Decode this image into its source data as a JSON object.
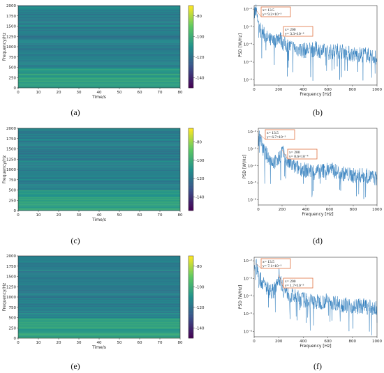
{
  "panel_labels": [
    "(a)",
    "(b)",
    "(c)",
    "(d)",
    "(e)",
    "(f)"
  ],
  "chart_data": [
    {
      "panel": "(a)",
      "type": "heatmap",
      "xlabel": "Time/s",
      "ylabel": "Frequency/Hz",
      "xlim": [
        0,
        80
      ],
      "ylim": [
        0,
        2000
      ],
      "xticks": [
        "0",
        "10",
        "20",
        "30",
        "40",
        "50",
        "60",
        "70",
        "80"
      ],
      "yticks": [
        "0",
        "250",
        "500",
        "750",
        "1000",
        "1250",
        "1500",
        "1750",
        "2000"
      ],
      "colorbar_ticks": [
        "-80",
        "-100",
        "-120",
        "-140"
      ],
      "colorbar_range": [
        -150,
        -70
      ],
      "colormap": [
        "#440154",
        "#3b528b",
        "#21918c",
        "#5ec962",
        "#fde725"
      ]
    },
    {
      "panel": "(b)",
      "type": "line",
      "xlabel": "Frequency [Hz]",
      "ylabel": "PSD [W/Hz]",
      "xlim": [
        0,
        1000
      ],
      "yscale": "log",
      "xticks": [
        "0",
        "200",
        "400",
        "600",
        "800",
        "1000"
      ],
      "yticks": [
        "10⁻²",
        "10⁻³",
        "10⁻⁴",
        "10⁻⁵",
        "10⁻⁶"
      ],
      "series": [
        {
          "x": [
            0,
            13.5,
            40,
            80,
            120,
            160,
            200,
            240,
            300,
            400,
            500,
            600,
            700,
            800,
            900,
            1000
          ],
          "y": [
            0.005,
            0.0092,
            0.001,
            0.0004,
            0.0002,
            0.00015,
            0.00033,
            0.00012,
            8e-05,
            5e-05,
            6e-05,
            4e-05,
            5e-05,
            3e-05,
            3e-05,
            2e-05
          ]
        }
      ],
      "annotations": [
        {
          "x": "x= 13.5",
          "y": "y= 9.2×10⁻³"
        },
        {
          "x": "x= 200",
          "y": "y= 3.3×10⁻⁴"
        }
      ],
      "color": "#2f7dbd"
    },
    {
      "panel": "(c)",
      "type": "heatmap",
      "xlabel": "Time/s",
      "ylabel": "Frequency/Hz",
      "xlim": [
        0,
        80
      ],
      "ylim": [
        0,
        2000
      ],
      "xticks": [
        "0",
        "10",
        "20",
        "30",
        "40",
        "50",
        "60",
        "70",
        "80"
      ],
      "yticks": [
        "0",
        "250",
        "500",
        "750",
        "1000",
        "1250",
        "1500",
        "1750",
        "2000"
      ],
      "colorbar_ticks": [
        "-80",
        "-100",
        "-120",
        "-140"
      ],
      "colorbar_range": [
        -155,
        -65
      ],
      "colormap": [
        "#440154",
        "#3b528b",
        "#21918c",
        "#5ec962",
        "#fde725"
      ]
    },
    {
      "panel": "(d)",
      "type": "line",
      "xlabel": "Frequency [Hz]",
      "ylabel": "PSD [W/Hz]",
      "xlim": [
        0,
        1000
      ],
      "yscale": "log",
      "xticks": [
        "0",
        "200",
        "400",
        "600",
        "800",
        "1000"
      ],
      "yticks": [
        "10⁻²",
        "10⁻³",
        "10⁻⁴",
        "10⁻⁵",
        "10⁻⁶"
      ],
      "series": [
        {
          "x": [
            0,
            13.5,
            40,
            80,
            120,
            160,
            200,
            240,
            300,
            400,
            500,
            600,
            700,
            800,
            900,
            1000
          ],
          "y": [
            0.004,
            0.0067,
            0.001,
            0.0004,
            0.0002,
            0.00018,
            0.00086,
            0.0002,
            0.0001,
            6e-05,
            5e-05,
            7e-05,
            4e-05,
            3e-05,
            3e-05,
            2e-05
          ]
        }
      ],
      "annotations": [
        {
          "x": "x= 13.5",
          "y": "y= 6.7×10⁻³"
        },
        {
          "x": "x= 200",
          "y": "y= 8.6×10⁻⁴"
        }
      ],
      "color": "#2f7dbd"
    },
    {
      "panel": "(e)",
      "type": "heatmap",
      "xlabel": "Time/s",
      "ylabel": "Frequency/Hz",
      "xlim": [
        0,
        80
      ],
      "ylim": [
        0,
        2000
      ],
      "xticks": [
        "0",
        "10",
        "20",
        "30",
        "40",
        "50",
        "60",
        "70",
        "80"
      ],
      "yticks": [
        "0",
        "250",
        "500",
        "750",
        "1000",
        "1250",
        "1500",
        "1750",
        "2000"
      ],
      "colorbar_ticks": [
        "-80",
        "-100",
        "-120",
        "-140"
      ],
      "colorbar_range": [
        -150,
        -70
      ],
      "colormap": [
        "#440154",
        "#3b528b",
        "#21918c",
        "#5ec962",
        "#fde725"
      ]
    },
    {
      "panel": "(f)",
      "type": "line",
      "xlabel": "Frequency [Hz]",
      "ylabel": "PSD [W/Hz]",
      "xlim": [
        0,
        1000
      ],
      "yscale": "log",
      "xticks": [
        "0",
        "200",
        "400",
        "600",
        "800",
        "1000"
      ],
      "yticks": [
        "10⁻²",
        "10⁻³",
        "10⁻⁴",
        "10⁻⁵",
        "10⁻⁶"
      ],
      "series": [
        {
          "x": [
            0,
            13.5,
            40,
            80,
            120,
            160,
            200,
            240,
            300,
            400,
            500,
            600,
            700,
            800,
            900,
            1000
          ],
          "y": [
            0.004,
            0.0071,
            0.0012,
            0.0005,
            0.00025,
            0.0002,
            0.0017,
            0.00025,
            0.00012,
            7e-05,
            5e-05,
            6e-05,
            4e-05,
            3e-05,
            3e-05,
            2e-05
          ]
        }
      ],
      "annotations": [
        {
          "x": "x= 13.5",
          "y": "y= 7.1×10⁻³"
        },
        {
          "x": "x= 200",
          "y": "y= 1.7×10⁻³"
        }
      ],
      "color": "#2f7dbd"
    }
  ]
}
